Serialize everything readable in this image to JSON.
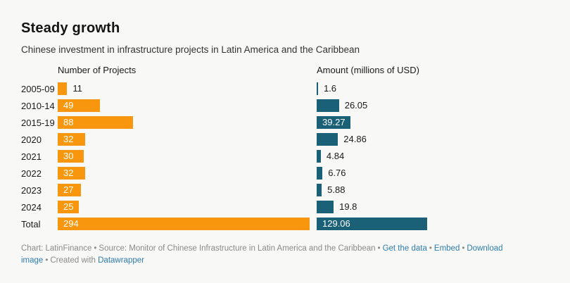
{
  "chart_data": {
    "type": "bar",
    "orientation": "horizontal",
    "title": "Steady growth",
    "subtitle": "Chinese investment in infrastructure projects in Latin America and the Caribbean",
    "categories": [
      "2005-09",
      "2010-14",
      "2015-19",
      "2020",
      "2021",
      "2022",
      "2023",
      "2024",
      "Total"
    ],
    "series": [
      {
        "name": "Number of Projects",
        "color": "#F8960D",
        "values": [
          11,
          49,
          88,
          32,
          30,
          32,
          27,
          25,
          294
        ]
      },
      {
        "name": "Amount (millions of USD)",
        "color": "#1A6178",
        "values": [
          1.6,
          26.05,
          39.27,
          24.86,
          4.84,
          6.76,
          5.88,
          19.8,
          129.06
        ]
      }
    ],
    "scale_max": 294,
    "legend_position": "column-headers",
    "grid": false
  },
  "footer": {
    "byline": "Chart: LatinFinance",
    "source": "Source: Monitor of Chinese Infrastructure in Latin America and the Caribbean",
    "separator": "•",
    "links": {
      "get_data": "Get the data",
      "embed": "Embed",
      "download": "Download image"
    },
    "created_with": "Created with",
    "brand": "Datawrapper"
  },
  "colors": {
    "background": "#f8f8f7",
    "projects_bar": "#F8960D",
    "amount_bar": "#1A6178",
    "link_blue": "#2d7cae",
    "footer_gray": "#8a8a8a"
  }
}
